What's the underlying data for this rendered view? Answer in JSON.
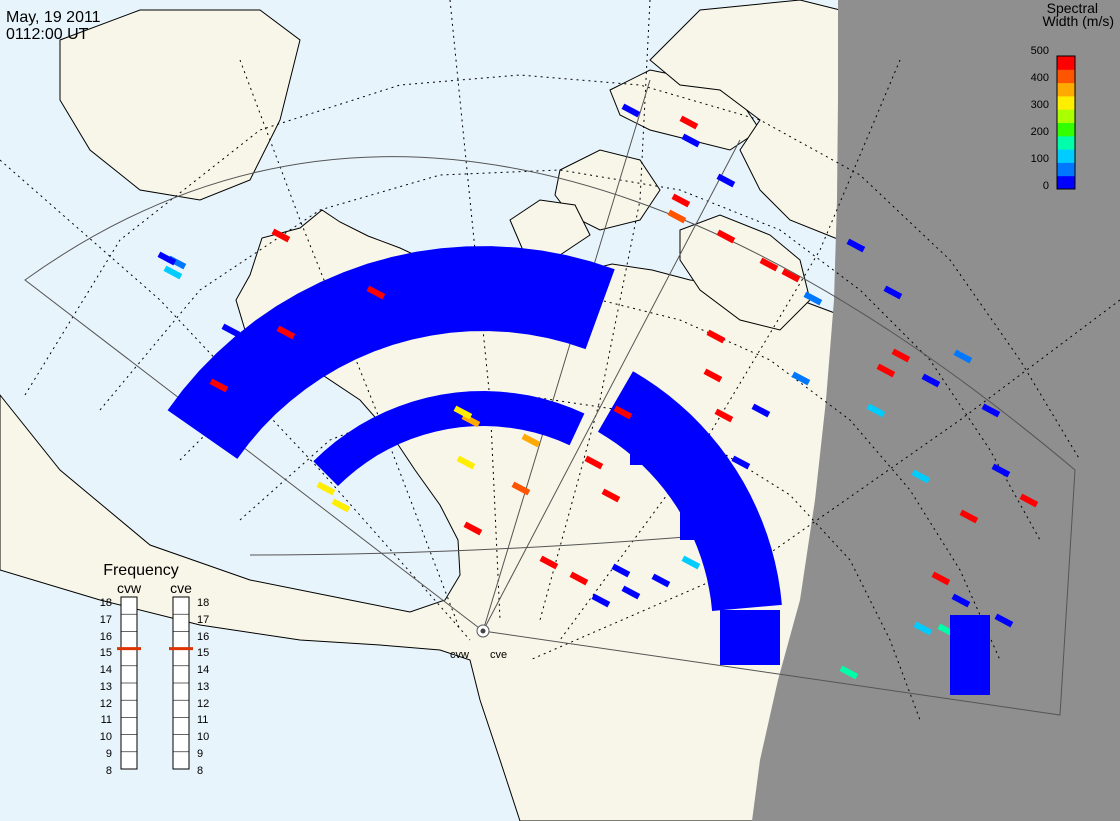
{
  "header": {
    "date": "May, 19 2011",
    "time": "0112:00 UT"
  },
  "colors": {
    "ocean": "#e8f4fc",
    "land": "#f7f6e8",
    "night": "#8f8f8f",
    "coast": "#000000",
    "grid": "#000000",
    "fov": "#555555"
  },
  "legend": {
    "title_line1": "Spectral",
    "title_line2": "Width (m/s)",
    "ticks": [
      "500",
      "400",
      "300",
      "200",
      "100",
      "0"
    ],
    "scale_min": 0,
    "scale_max": 500,
    "colormap": [
      "#0000ff",
      "#0077ff",
      "#00ccff",
      "#00ffaa",
      "#33ff00",
      "#aaff00",
      "#ffee00",
      "#ffaa00",
      "#ff5500",
      "#ff0000"
    ]
  },
  "frequency": {
    "title": "Frequency",
    "radars": [
      {
        "name": "cvw",
        "freq_mhz": 15
      },
      {
        "name": "cve",
        "freq_mhz": 15
      }
    ],
    "scale": [
      "18",
      "17",
      "16",
      "15",
      "14",
      "13",
      "12",
      "11",
      "10",
      "9",
      "8"
    ],
    "marker_color": "#dd3300"
  },
  "stations": [
    {
      "name": "cvw"
    },
    {
      "name": "cve"
    }
  ]
}
